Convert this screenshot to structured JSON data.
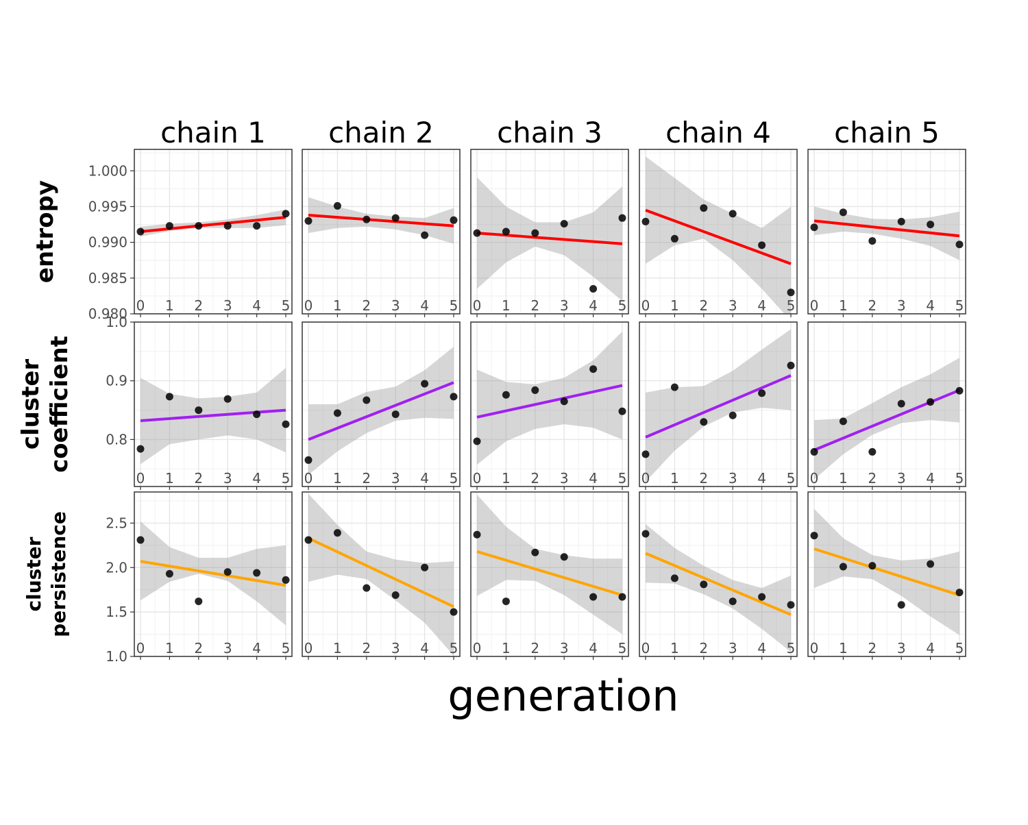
{
  "chart_data": {
    "type": "scatter",
    "xlabel": "generation",
    "x": [
      0,
      1,
      2,
      3,
      4,
      5
    ],
    "x_tick_labels": [
      "0",
      "1",
      "2",
      "3",
      "4",
      "5"
    ],
    "columns": [
      "chain 1",
      "chain 2",
      "chain 3",
      "chain 4",
      "chain 5"
    ],
    "grid": true,
    "rows": [
      {
        "label": "entropy",
        "line_color": "#ff0000",
        "ylim": [
          0.98,
          1.003
        ],
        "y_ticks": [
          0.98,
          0.985,
          0.99,
          0.995,
          1.0
        ],
        "y_tick_labels": [
          "0.980",
          "0.985",
          "0.990",
          "0.995",
          "1.000"
        ],
        "panels": [
          {
            "points": [
              0.9915,
              0.9923,
              0.9923,
              0.9923,
              0.9923,
              0.994
            ],
            "fit": [
              0.9915,
              0.9935
            ],
            "band_lower": [
              0.9908,
              0.9916,
              0.992,
              0.992,
              0.992,
              0.9924
            ],
            "band_upper": [
              0.9922,
              0.9926,
              0.9928,
              0.9932,
              0.9938,
              0.9946
            ]
          },
          {
            "points": [
              0.993,
              0.9951,
              0.9932,
              0.9934,
              0.991,
              0.9931
            ],
            "fit": [
              0.9938,
              0.9923
            ],
            "band_lower": [
              0.9913,
              0.992,
              0.9922,
              0.9918,
              0.991,
              0.9898
            ],
            "band_upper": [
              0.9963,
              0.995,
              0.994,
              0.9936,
              0.9934,
              0.9948
            ]
          },
          {
            "points": [
              0.9913,
              0.9915,
              0.9913,
              0.9926,
              0.9835,
              0.9934
            ],
            "fit": [
              0.9913,
              0.9898
            ],
            "band_lower": [
              0.9835,
              0.9872,
              0.9894,
              0.9882,
              0.9852,
              0.9818
            ],
            "band_upper": [
              0.9991,
              0.995,
              0.9928,
              0.9928,
              0.9942,
              0.9978
            ]
          },
          {
            "points": [
              0.9929,
              0.9905,
              0.9948,
              0.994,
              0.9896,
              0.983
            ],
            "fit": [
              0.9945,
              0.987
            ],
            "band_lower": [
              0.987,
              0.9896,
              0.9905,
              0.9875,
              0.9835,
              0.979
            ],
            "band_upper": [
              1.002,
              0.999,
              0.996,
              0.994,
              0.992,
              0.995
            ]
          },
          {
            "points": [
              0.9921,
              0.9942,
              0.9902,
              0.9929,
              0.9925,
              0.9897
            ],
            "fit": [
              0.993,
              0.9909
            ],
            "band_lower": [
              0.991,
              0.9915,
              0.9912,
              0.9905,
              0.9895,
              0.9875
            ],
            "band_upper": [
              0.995,
              0.994,
              0.9933,
              0.9932,
              0.9935,
              0.9943
            ]
          }
        ]
      },
      {
        "label": "cluster coefficient",
        "line_color": "#a020f0",
        "ylim": [
          0.72,
          1.0
        ],
        "y_ticks": [
          0.8,
          0.9,
          1.0
        ],
        "y_tick_labels": [
          "0.8",
          "0.9",
          "1.0"
        ],
        "panels": [
          {
            "points": [
              0.784,
              0.873,
              0.85,
              0.869,
              0.843,
              0.826
            ],
            "fit": [
              0.832,
              0.85
            ],
            "band_lower": [
              0.758,
              0.792,
              0.8,
              0.807,
              0.8,
              0.778
            ],
            "band_upper": [
              0.905,
              0.878,
              0.87,
              0.873,
              0.88,
              0.922
            ]
          },
          {
            "points": [
              0.765,
              0.845,
              0.867,
              0.843,
              0.895,
              0.873
            ],
            "fit": [
              0.8,
              0.897
            ],
            "band_lower": [
              0.74,
              0.78,
              0.811,
              0.832,
              0.837,
              0.835
            ],
            "band_upper": [
              0.86,
              0.86,
              0.881,
              0.89,
              0.918,
              0.958
            ]
          },
          {
            "points": [
              0.797,
              0.876,
              0.884,
              0.865,
              0.92,
              0.848
            ],
            "fit": [
              0.838,
              0.892
            ],
            "band_lower": [
              0.757,
              0.797,
              0.818,
              0.826,
              0.82,
              0.8
            ],
            "band_upper": [
              0.919,
              0.898,
              0.894,
              0.905,
              0.935,
              0.984
            ]
          },
          {
            "points": [
              0.775,
              0.889,
              0.83,
              0.841,
              0.879,
              0.926
            ],
            "fit": [
              0.804,
              0.909
            ],
            "band_lower": [
              0.728,
              0.781,
              0.822,
              0.846,
              0.854,
              0.85
            ],
            "band_upper": [
              0.88,
              0.889,
              0.891,
              0.917,
              0.953,
              0.988
            ]
          },
          {
            "points": [
              0.779,
              0.831,
              0.779,
              0.861,
              0.864,
              0.883
            ],
            "fit": [
              0.782,
              0.884
            ],
            "band_lower": [
              0.732,
              0.775,
              0.808,
              0.828,
              0.833,
              0.829
            ],
            "band_upper": [
              0.833,
              0.836,
              0.862,
              0.889,
              0.911,
              0.939
            ]
          }
        ]
      },
      {
        "label": "cluster persistence",
        "line_color": "#ffa500",
        "ylim": [
          1.0,
          2.85
        ],
        "y_ticks": [
          1.0,
          1.5,
          2.0,
          2.5
        ],
        "y_tick_labels": [
          "1.0",
          "1.5",
          "2.0",
          "2.5"
        ],
        "panels": [
          {
            "points": [
              2.31,
              1.93,
              1.62,
              1.95,
              1.94,
              1.86
            ],
            "fit": [
              2.07,
              1.8
            ],
            "band_lower": [
              1.63,
              1.84,
              1.93,
              1.85,
              1.62,
              1.35
            ],
            "band_upper": [
              2.52,
              2.23,
              2.11,
              2.11,
              2.21,
              2.25
            ]
          },
          {
            "points": [
              2.31,
              2.39,
              1.77,
              1.69,
              2.0,
              1.5
            ],
            "fit": [
              2.33,
              1.56
            ],
            "band_lower": [
              1.84,
              1.92,
              1.87,
              1.63,
              1.38,
              1.01
            ],
            "band_upper": [
              2.83,
              2.48,
              2.18,
              2.09,
              2.05,
              2.07
            ]
          },
          {
            "points": [
              2.37,
              1.62,
              2.17,
              2.12,
              1.67,
              1.67
            ],
            "fit": [
              2.18,
              1.69
            ],
            "band_lower": [
              1.68,
              1.86,
              1.85,
              1.69,
              1.47,
              1.25
            ],
            "band_upper": [
              2.82,
              2.46,
              2.21,
              2.14,
              2.1,
              2.1
            ]
          },
          {
            "points": [
              2.38,
              1.88,
              1.81,
              1.62,
              1.67,
              1.58
            ],
            "fit": [
              2.16,
              1.47
            ],
            "band_lower": [
              1.83,
              1.82,
              1.7,
              1.54,
              1.31,
              1.05
            ],
            "band_upper": [
              2.49,
              2.22,
              2.02,
              1.86,
              1.77,
              1.91
            ]
          },
          {
            "points": [
              2.36,
              2.01,
              2.02,
              1.58,
              2.04,
              1.72
            ],
            "fit": [
              2.21,
              1.69
            ],
            "band_lower": [
              1.77,
              1.9,
              1.87,
              1.68,
              1.45,
              1.24
            ],
            "band_upper": [
              2.66,
              2.33,
              2.14,
              2.08,
              2.1,
              2.18
            ]
          }
        ]
      }
    ]
  }
}
